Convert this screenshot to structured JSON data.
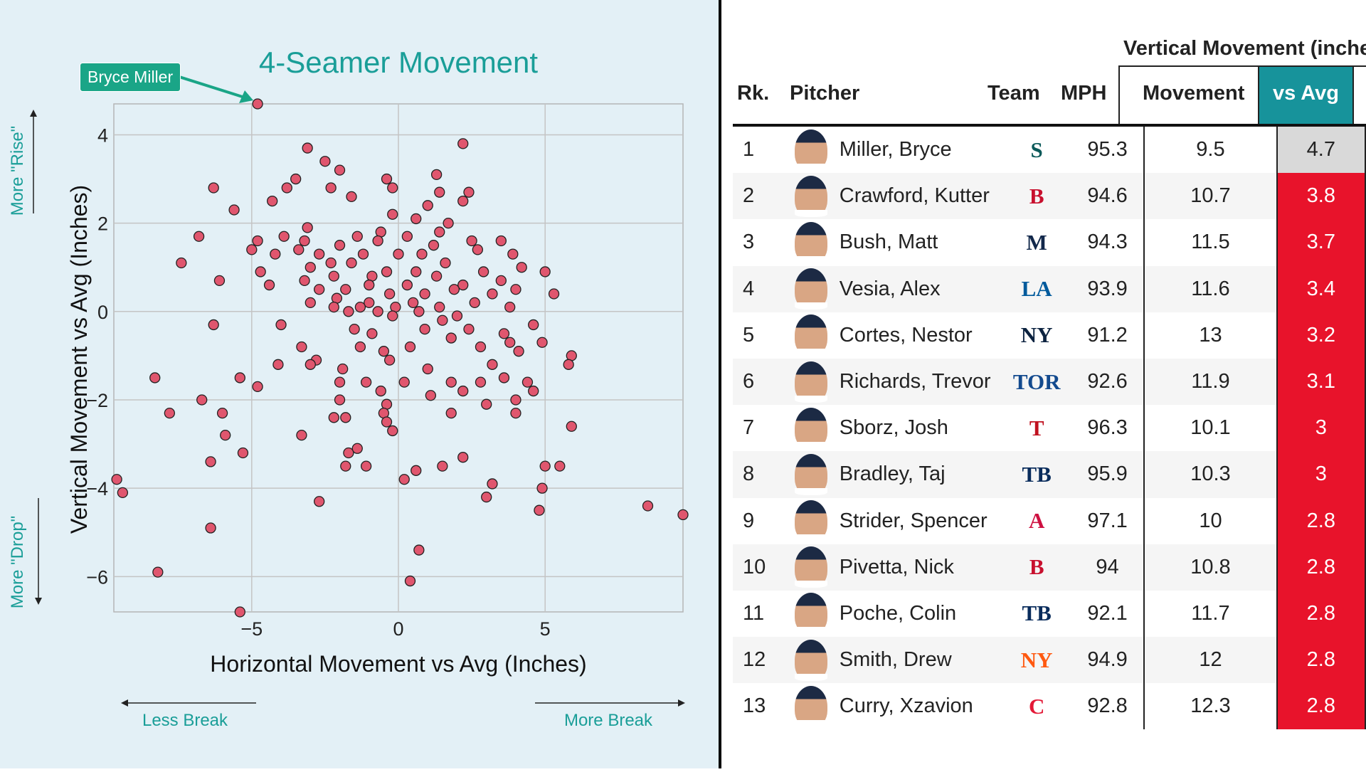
{
  "chart": {
    "title": "4-Seamer Movement",
    "callout": "Bryce Miller",
    "xlabel": "Horizontal Movement vs Avg (Inches)",
    "ylabel": "Vertical Movement vs Avg (Inches)",
    "rise_label": "More \"Rise\"",
    "drop_label": "More \"Drop\"",
    "less_break_label": "Less Break",
    "more_break_label": "More Break"
  },
  "chart_data": {
    "type": "scatter",
    "title": "4-Seamer Movement",
    "xlabel": "Horizontal Movement vs Avg (Inches)",
    "ylabel": "Vertical Movement vs Avg (Inches)",
    "xlim": [
      -9.7,
      9.7
    ],
    "ylim": [
      -6.8,
      4.7
    ],
    "xticks": [
      -5,
      0,
      5
    ],
    "yticks": [
      4,
      2,
      0,
      -2,
      -4,
      -6
    ],
    "grid": true,
    "highlight": {
      "label": "Bryce Miller",
      "x": -4.8,
      "y": 4.7
    },
    "colors": {
      "marker": "#e0566e",
      "marker_edge": "#222222",
      "accent": "#1aa587",
      "title": "#1a9e98"
    },
    "points": [
      [
        -4.8,
        4.7
      ],
      [
        2.2,
        3.8
      ],
      [
        -3.1,
        3.7
      ],
      [
        -2.5,
        3.4
      ],
      [
        -2.0,
        3.2
      ],
      [
        1.3,
        3.1
      ],
      [
        -3.5,
        3.0
      ],
      [
        -0.4,
        3.0
      ],
      [
        -3.8,
        2.8
      ],
      [
        -2.3,
        2.8
      ],
      [
        -0.2,
        2.8
      ],
      [
        -6.3,
        2.8
      ],
      [
        1.4,
        2.7
      ],
      [
        2.4,
        2.7
      ],
      [
        -1.6,
        2.6
      ],
      [
        -4.3,
        2.5
      ],
      [
        2.2,
        2.5
      ],
      [
        1.0,
        2.4
      ],
      [
        -5.6,
        2.3
      ],
      [
        -0.2,
        2.2
      ],
      [
        0.6,
        2.1
      ],
      [
        1.7,
        2.0
      ],
      [
        -3.1,
        1.9
      ],
      [
        -0.6,
        1.8
      ],
      [
        1.4,
        1.8
      ],
      [
        0.3,
        1.7
      ],
      [
        -6.8,
        1.7
      ],
      [
        -1.4,
        1.7
      ],
      [
        -3.9,
        1.7
      ],
      [
        -3.2,
        1.6
      ],
      [
        2.5,
        1.6
      ],
      [
        -4.8,
        1.6
      ],
      [
        -0.7,
        1.6
      ],
      [
        1.2,
        1.5
      ],
      [
        -2.0,
        1.5
      ],
      [
        3.5,
        1.6
      ],
      [
        -5.0,
        1.4
      ],
      [
        -3.4,
        1.4
      ],
      [
        -2.7,
        1.3
      ],
      [
        -1.2,
        1.3
      ],
      [
        0.0,
        1.3
      ],
      [
        0.8,
        1.3
      ],
      [
        -4.2,
        1.3
      ],
      [
        2.7,
        1.4
      ],
      [
        3.9,
        1.3
      ],
      [
        -1.6,
        1.1
      ],
      [
        -2.3,
        1.1
      ],
      [
        1.6,
        1.1
      ],
      [
        -7.4,
        1.1
      ],
      [
        -3.0,
        1.0
      ],
      [
        -0.4,
        0.9
      ],
      [
        0.6,
        0.9
      ],
      [
        4.2,
        1.0
      ],
      [
        2.9,
        0.9
      ],
      [
        -4.7,
        0.9
      ],
      [
        -2.2,
        0.8
      ],
      [
        -0.9,
        0.8
      ],
      [
        1.3,
        0.8
      ],
      [
        5.0,
        0.9
      ],
      [
        -3.2,
        0.7
      ],
      [
        3.5,
        0.7
      ],
      [
        -6.1,
        0.7
      ],
      [
        -1.0,
        0.6
      ],
      [
        0.3,
        0.6
      ],
      [
        2.2,
        0.6
      ],
      [
        -4.4,
        0.6
      ],
      [
        1.9,
        0.5
      ],
      [
        -2.7,
        0.5
      ],
      [
        -1.8,
        0.5
      ],
      [
        4.0,
        0.5
      ],
      [
        0.9,
        0.4
      ],
      [
        -0.3,
        0.4
      ],
      [
        3.2,
        0.4
      ],
      [
        -2.1,
        0.3
      ],
      [
        -1.0,
        0.2
      ],
      [
        0.5,
        0.2
      ],
      [
        5.3,
        0.4
      ],
      [
        -1.3,
        0.1
      ],
      [
        1.4,
        0.1
      ],
      [
        2.6,
        0.2
      ],
      [
        -3.0,
        0.2
      ],
      [
        -0.1,
        0.1
      ],
      [
        3.8,
        0.1
      ],
      [
        -2.2,
        0.1
      ],
      [
        -1.7,
        0.0
      ],
      [
        0.7,
        0.0
      ],
      [
        -0.7,
        0.0
      ],
      [
        2.0,
        -0.1
      ],
      [
        -0.2,
        -0.1
      ],
      [
        1.5,
        -0.2
      ],
      [
        4.6,
        -0.3
      ],
      [
        -6.3,
        -0.3
      ],
      [
        -4.0,
        -0.3
      ],
      [
        3.6,
        -0.5
      ],
      [
        -1.5,
        -0.4
      ],
      [
        0.9,
        -0.4
      ],
      [
        2.4,
        -0.4
      ],
      [
        -0.9,
        -0.5
      ],
      [
        1.8,
        -0.6
      ],
      [
        -3.3,
        -0.8
      ],
      [
        -1.3,
        -0.8
      ],
      [
        0.4,
        -0.8
      ],
      [
        4.9,
        -0.7
      ],
      [
        3.8,
        -0.7
      ],
      [
        -0.5,
        -0.9
      ],
      [
        2.8,
        -0.8
      ],
      [
        4.1,
        -0.9
      ],
      [
        5.9,
        -1.0
      ],
      [
        -2.8,
        -1.1
      ],
      [
        -4.1,
        -1.2
      ],
      [
        1.0,
        -1.3
      ],
      [
        3.2,
        -1.2
      ],
      [
        -3.0,
        -1.2
      ],
      [
        -1.9,
        -1.3
      ],
      [
        -0.3,
        -1.1
      ],
      [
        5.8,
        -1.2
      ],
      [
        1.8,
        -1.6
      ],
      [
        -8.3,
        -1.5
      ],
      [
        -5.4,
        -1.5
      ],
      [
        -1.1,
        -1.6
      ],
      [
        0.2,
        -1.6
      ],
      [
        3.6,
        -1.5
      ],
      [
        4.4,
        -1.6
      ],
      [
        -4.8,
        -1.7
      ],
      [
        2.8,
        -1.6
      ],
      [
        -2.0,
        -1.6
      ],
      [
        4.6,
        -1.8
      ],
      [
        2.2,
        -1.8
      ],
      [
        -0.6,
        -1.8
      ],
      [
        1.1,
        -1.9
      ],
      [
        -2.0,
        -2.0
      ],
      [
        -6.7,
        -2.0
      ],
      [
        4.0,
        -2.0
      ],
      [
        3.0,
        -2.1
      ],
      [
        -0.4,
        -2.1
      ],
      [
        -7.8,
        -2.3
      ],
      [
        -6.0,
        -2.3
      ],
      [
        1.8,
        -2.3
      ],
      [
        -2.2,
        -2.4
      ],
      [
        -0.5,
        -2.3
      ],
      [
        -1.8,
        -2.4
      ],
      [
        -0.4,
        -2.5
      ],
      [
        4.0,
        -2.3
      ],
      [
        -3.3,
        -2.8
      ],
      [
        -5.9,
        -2.8
      ],
      [
        5.9,
        -2.6
      ],
      [
        -0.2,
        -2.7
      ],
      [
        -1.7,
        -3.2
      ],
      [
        2.2,
        -3.3
      ],
      [
        -5.3,
        -3.2
      ],
      [
        -1.4,
        -3.1
      ],
      [
        -6.4,
        -3.4
      ],
      [
        -1.8,
        -3.5
      ],
      [
        -1.1,
        -3.5
      ],
      [
        1.5,
        -3.5
      ],
      [
        5.0,
        -3.5
      ],
      [
        5.5,
        -3.5
      ],
      [
        0.6,
        -3.6
      ],
      [
        -9.6,
        -3.8
      ],
      [
        0.2,
        -3.8
      ],
      [
        3.2,
        -3.9
      ],
      [
        4.9,
        -4.0
      ],
      [
        -9.4,
        -4.1
      ],
      [
        3.0,
        -4.2
      ],
      [
        -2.7,
        -4.3
      ],
      [
        8.5,
        -4.4
      ],
      [
        4.8,
        -4.5
      ],
      [
        9.7,
        -4.6
      ],
      [
        -6.4,
        -4.9
      ],
      [
        0.7,
        -5.4
      ],
      [
        -8.2,
        -5.9
      ],
      [
        0.4,
        -6.1
      ],
      [
        -5.4,
        -6.8
      ]
    ]
  },
  "table": {
    "group_header": "Vertical Movement (inches)",
    "columns": {
      "rank": "Rk.",
      "pitcher": "Pitcher",
      "team": "Team",
      "mph": "MPH",
      "movement": "Movement",
      "vs_avg": "vs Avg"
    },
    "header_vs_avg_bg": "#17939b",
    "rows": [
      {
        "rank": "1",
        "pitcher": "Miller, Bryce",
        "team_logo": "S",
        "team_color": "#0c5a5a",
        "mph": "95.3",
        "movement": "9.5",
        "vs_avg": "4.7",
        "vs_avg_bg": "#d9d9d9",
        "vs_avg_color": "#222222"
      },
      {
        "rank": "2",
        "pitcher": "Crawford, Kutter",
        "team_logo": "B",
        "team_color": "#c8102e",
        "mph": "94.6",
        "movement": "10.7",
        "vs_avg": "3.8",
        "vs_avg_bg": "#e8132b",
        "vs_avg_color": "#ffffff"
      },
      {
        "rank": "3",
        "pitcher": "Bush, Matt",
        "team_logo": "M",
        "team_color": "#12284b",
        "mph": "94.3",
        "movement": "11.5",
        "vs_avg": "3.7",
        "vs_avg_bg": "#e8132b",
        "vs_avg_color": "#ffffff"
      },
      {
        "rank": "4",
        "pitcher": "Vesia, Alex",
        "team_logo": "LA",
        "team_color": "#005a9c",
        "mph": "93.9",
        "movement": "11.6",
        "vs_avg": "3.4",
        "vs_avg_bg": "#e8132b",
        "vs_avg_color": "#ffffff"
      },
      {
        "rank": "5",
        "pitcher": "Cortes, Nestor",
        "team_logo": "NY",
        "team_color": "#0c2340",
        "mph": "91.2",
        "movement": "13",
        "vs_avg": "3.2",
        "vs_avg_bg": "#e8132b",
        "vs_avg_color": "#ffffff"
      },
      {
        "rank": "6",
        "pitcher": "Richards, Trevor",
        "team_logo": "TOR",
        "team_color": "#134a8e",
        "mph": "92.6",
        "movement": "11.9",
        "vs_avg": "3.1",
        "vs_avg_bg": "#e8132b",
        "vs_avg_color": "#ffffff"
      },
      {
        "rank": "7",
        "pitcher": "Sborz, Josh",
        "team_logo": "T",
        "team_color": "#c0111f",
        "mph": "96.3",
        "movement": "10.1",
        "vs_avg": "3",
        "vs_avg_bg": "#e8132b",
        "vs_avg_color": "#ffffff"
      },
      {
        "rank": "8",
        "pitcher": "Bradley, Taj",
        "team_logo": "TB",
        "team_color": "#092c5c",
        "mph": "95.9",
        "movement": "10.3",
        "vs_avg": "3",
        "vs_avg_bg": "#e8132b",
        "vs_avg_color": "#ffffff"
      },
      {
        "rank": "9",
        "pitcher": "Strider, Spencer",
        "team_logo": "A",
        "team_color": "#ce1141",
        "mph": "97.1",
        "movement": "10",
        "vs_avg": "2.8",
        "vs_avg_bg": "#e8132b",
        "vs_avg_color": "#ffffff"
      },
      {
        "rank": "10",
        "pitcher": "Pivetta, Nick",
        "team_logo": "B",
        "team_color": "#c8102e",
        "mph": "94",
        "movement": "10.8",
        "vs_avg": "2.8",
        "vs_avg_bg": "#e8132b",
        "vs_avg_color": "#ffffff"
      },
      {
        "rank": "11",
        "pitcher": "Poche, Colin",
        "team_logo": "TB",
        "team_color": "#092c5c",
        "mph": "92.1",
        "movement": "11.7",
        "vs_avg": "2.8",
        "vs_avg_bg": "#e8132b",
        "vs_avg_color": "#ffffff"
      },
      {
        "rank": "12",
        "pitcher": "Smith, Drew",
        "team_logo": "NY",
        "team_color": "#ff5910",
        "mph": "94.9",
        "movement": "12",
        "vs_avg": "2.8",
        "vs_avg_bg": "#e8132b",
        "vs_avg_color": "#ffffff"
      },
      {
        "rank": "13",
        "pitcher": "Curry, Xzavion",
        "team_logo": "C",
        "team_color": "#e31937",
        "mph": "92.8",
        "movement": "12.3",
        "vs_avg": "2.8",
        "vs_avg_bg": "#e8132b",
        "vs_avg_color": "#ffffff"
      }
    ]
  }
}
